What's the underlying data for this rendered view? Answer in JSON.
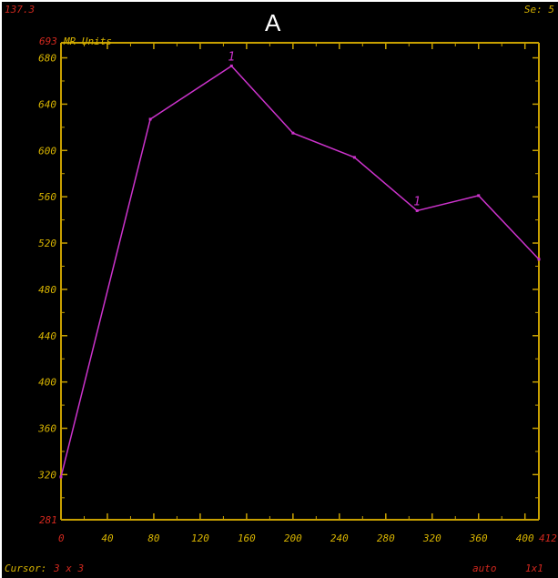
{
  "hud": {
    "top_left_value": "137.3",
    "panel_label": "A",
    "series_label": "Se: 5",
    "cursor_label": "Cursor:",
    "cursor_value": "3 x 3",
    "scale_mode": "auto",
    "zoom": "1x1"
  },
  "chart_data": {
    "type": "line",
    "title": "",
    "ylabel": "MR Units",
    "xlabel": "",
    "y_max_label": "693",
    "y_min_label": "281",
    "x_min_label": "0",
    "x_max_label": "412",
    "xlim": [
      0,
      412
    ],
    "ylim": [
      281,
      693
    ],
    "x_ticks": [
      40,
      80,
      120,
      160,
      200,
      240,
      280,
      320,
      360,
      400
    ],
    "y_ticks": [
      320,
      360,
      400,
      440,
      480,
      520,
      560,
      600,
      640,
      680
    ],
    "grid": false,
    "series": [
      {
        "color": "#cc33cc",
        "x": [
          0,
          77,
          147,
          200,
          253,
          307,
          360,
          412
        ],
        "y": [
          318,
          627,
          673,
          615,
          594,
          548,
          561,
          506
        ]
      }
    ],
    "annotations": [
      {
        "text": "1",
        "x": 147,
        "y": 673
      },
      {
        "text": "1",
        "x": 307,
        "y": 548
      }
    ],
    "colors": {
      "axis": "#c8a000",
      "extreme_labels": "#d2281e",
      "line": "#cc33cc",
      "background": "#000000"
    }
  }
}
